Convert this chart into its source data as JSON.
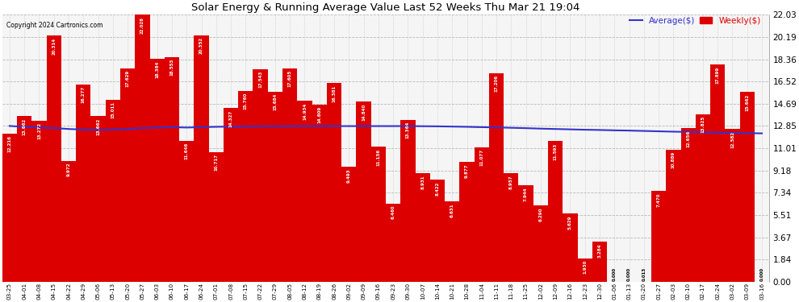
{
  "title": "Solar Energy & Running Average Value Last 52 Weeks Thu Mar 21 19:04",
  "copyright": "Copyright 2024 Cartronics.com",
  "bar_color": "#dd0000",
  "avg_line_color": "#3333cc",
  "background_color": "#ffffff",
  "plot_bg_color": "#f5f5f5",
  "grid_color": "#aaaaaa",
  "ylim": [
    0,
    22.03
  ],
  "yticks": [
    0.0,
    1.84,
    3.67,
    5.51,
    7.34,
    9.18,
    11.01,
    12.85,
    14.69,
    16.52,
    18.36,
    20.19,
    22.03
  ],
  "dates": [
    "03-25",
    "04-01",
    "04-08",
    "04-15",
    "04-22",
    "04-29",
    "05-06",
    "05-13",
    "05-20",
    "05-27",
    "06-03",
    "06-10",
    "06-17",
    "06-24",
    "07-01",
    "07-08",
    "07-15",
    "07-22",
    "07-29",
    "08-05",
    "08-12",
    "08-19",
    "08-26",
    "09-02",
    "09-09",
    "09-16",
    "09-23",
    "09-30",
    "10-07",
    "10-14",
    "10-21",
    "10-28",
    "11-04",
    "11-11",
    "11-18",
    "11-25",
    "12-02",
    "12-09",
    "12-16",
    "12-23",
    "12-30",
    "01-06",
    "01-13",
    "01-20",
    "01-27",
    "02-03",
    "02-10",
    "02-17",
    "02-24",
    "03-02",
    "03-09",
    "03-16"
  ],
  "weekly_values": [
    12.216,
    13.662,
    13.272,
    20.314,
    9.972,
    16.277,
    13.662,
    15.011,
    17.629,
    22.028,
    18.384,
    18.553,
    11.646,
    20.352,
    10.717,
    14.327,
    15.76,
    17.543,
    15.684,
    17.605,
    14.934,
    14.609,
    16.381,
    9.493,
    14.84,
    11.136,
    6.46,
    13.364,
    8.931,
    8.422,
    6.631,
    9.877,
    11.077,
    17.206,
    8.957,
    7.944,
    6.29,
    11.593,
    5.629,
    1.93,
    3.284,
    0.0,
    0.0,
    0.013,
    7.47,
    10.889,
    12.656,
    13.825,
    17.899,
    12.582,
    15.662,
    0.0
  ],
  "avg_values": [
    12.85,
    12.78,
    12.72,
    12.68,
    12.6,
    12.55,
    12.52,
    12.55,
    12.6,
    12.68,
    12.72,
    12.75,
    12.72,
    12.75,
    12.78,
    12.8,
    12.82,
    12.83,
    12.83,
    12.84,
    12.84,
    12.84,
    12.84,
    12.84,
    12.84,
    12.84,
    12.84,
    12.84,
    12.83,
    12.82,
    12.8,
    12.78,
    12.75,
    12.73,
    12.7,
    12.67,
    12.63,
    12.6,
    12.57,
    12.54,
    12.52,
    12.49,
    12.47,
    12.44,
    12.41,
    12.38,
    12.36,
    12.33,
    12.3,
    12.28,
    12.26,
    12.24
  ],
  "legend_avg": "Average($)",
  "legend_weekly": "Weekly($)"
}
